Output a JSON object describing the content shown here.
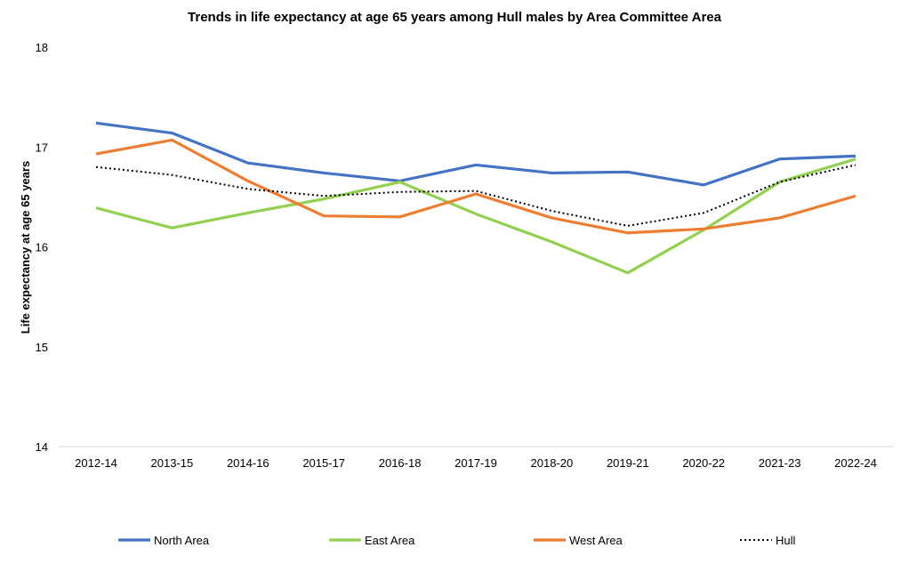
{
  "chart_data": {
    "type": "line",
    "title": "Trends in life expectancy at  age 65 years among Hull males by Area Committee Area",
    "xlabel": "",
    "ylabel": "Life expectancy at  age 65 years",
    "ylim": [
      14,
      18
    ],
    "yticks": [
      "14",
      "15",
      "16",
      "17",
      "18"
    ],
    "grid": false,
    "legend": "bottom",
    "categories": [
      "2012-14",
      "2013-15",
      "2014-16",
      "2015-17",
      "2016-18",
      "2017-19",
      "2018-20",
      "2019-21",
      "2020-22",
      "2021-23",
      "2022-24"
    ],
    "series": [
      {
        "name": "North Area",
        "color": "#4472C4",
        "style": "solid",
        "values": [
          17.24,
          17.14,
          16.84,
          16.74,
          16.66,
          16.82,
          16.74,
          16.75,
          16.62,
          16.88,
          16.91
        ]
      },
      {
        "name": "East Area",
        "color": "#92D050",
        "style": "solid",
        "values": [
          16.39,
          16.19,
          16.34,
          16.48,
          16.65,
          16.33,
          16.05,
          15.74,
          16.17,
          16.65,
          16.88
        ]
      },
      {
        "name": "West Area",
        "color": "#ED7D31",
        "style": "solid",
        "values": [
          16.93,
          17.07,
          16.66,
          16.31,
          16.3,
          16.53,
          16.29,
          16.14,
          16.18,
          16.29,
          16.51
        ]
      },
      {
        "name": "Hull",
        "color": "#000000",
        "style": "dotted",
        "values": [
          16.8,
          16.72,
          16.58,
          16.51,
          16.55,
          16.56,
          16.36,
          16.21,
          16.34,
          16.65,
          16.82
        ]
      }
    ]
  }
}
